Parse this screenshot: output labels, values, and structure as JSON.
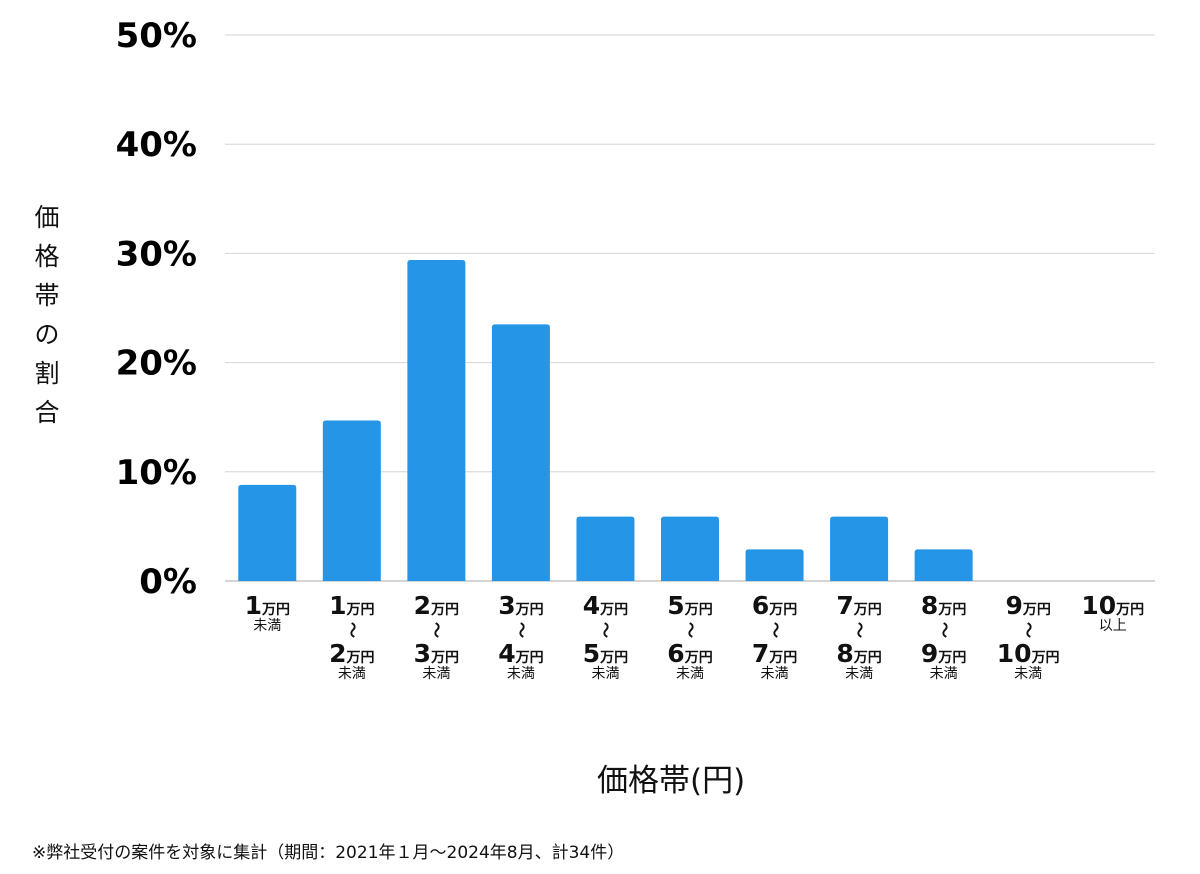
{
  "chart_data": {
    "type": "bar",
    "ylabel": "価格帯の割合",
    "xlabel": "価格帯(円)",
    "ylim": [
      0,
      50
    ],
    "yticks": [
      "0%",
      "10%",
      "20%",
      "30%",
      "40%",
      "50%"
    ],
    "grid": true,
    "bar_color": "#2595e8",
    "categories": [
      {
        "from": "1",
        "unit": "万円",
        "note": "未満"
      },
      {
        "from": "1",
        "to": "2",
        "unit": "万円",
        "note": "未満"
      },
      {
        "from": "2",
        "to": "3",
        "unit": "万円",
        "note": "未満"
      },
      {
        "from": "3",
        "to": "4",
        "unit": "万円",
        "note": "未満"
      },
      {
        "from": "4",
        "to": "5",
        "unit": "万円",
        "note": "未満"
      },
      {
        "from": "5",
        "to": "6",
        "unit": "万円",
        "note": "未満"
      },
      {
        "from": "6",
        "to": "7",
        "unit": "万円",
        "note": "未満"
      },
      {
        "from": "7",
        "to": "8",
        "unit": "万円",
        "note": "未満"
      },
      {
        "from": "8",
        "to": "9",
        "unit": "万円",
        "note": "未満"
      },
      {
        "from": "9",
        "to": "10",
        "unit": "万円",
        "note": "未満"
      },
      {
        "from": "10",
        "unit": "万円",
        "note": "以上"
      }
    ],
    "range_mark": "〜",
    "values": [
      8.8,
      14.7,
      29.4,
      23.5,
      5.9,
      5.9,
      2.9,
      5.9,
      2.9,
      0,
      0
    ]
  },
  "footnote": "※弊社受付の案件を対象に集計（期間：2021年１月〜2024年8月、計34件）"
}
